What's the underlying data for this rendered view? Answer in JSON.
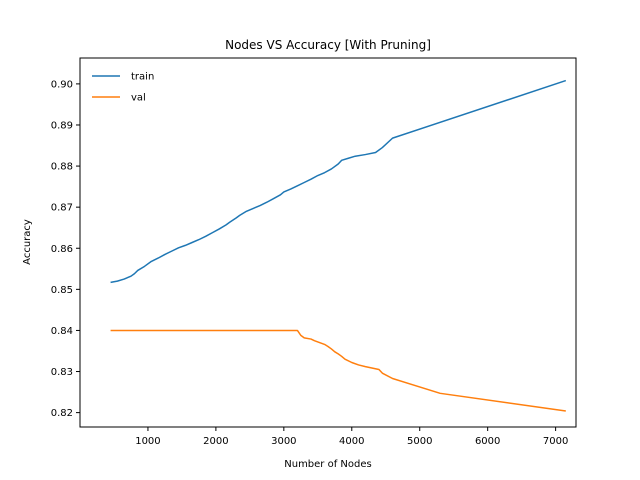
{
  "chart_data": {
    "type": "line",
    "title": "Nodes VS Accuracy [With Pruning]",
    "xlabel": "Number of Nodes",
    "ylabel": "Accuracy",
    "xlim": [
      0,
      7300
    ],
    "ylim": [
      0.8165,
      0.9063
    ],
    "xticks": [
      1000,
      2000,
      3000,
      4000,
      5000,
      6000,
      7000
    ],
    "yticks": [
      0.82,
      0.83,
      0.84,
      0.85,
      0.86,
      0.87,
      0.88,
      0.89,
      0.9
    ],
    "xtick_labels": [
      "1000",
      "2000",
      "3000",
      "4000",
      "5000",
      "6000",
      "7000"
    ],
    "ytick_labels": [
      "0.82",
      "0.83",
      "0.84",
      "0.85",
      "0.86",
      "0.87",
      "0.88",
      "0.89",
      "0.90"
    ],
    "grid": false,
    "legend_position": "top-left",
    "series": [
      {
        "name": "train",
        "color": "#1f77b4",
        "x": [
          450,
          550,
          650,
          750,
          800,
          850,
          950,
          1050,
          1150,
          1250,
          1350,
          1450,
          1550,
          1650,
          1750,
          1850,
          1950,
          2050,
          2150,
          2200,
          2300,
          2350,
          2450,
          2550,
          2650,
          2750,
          2850,
          2950,
          3000,
          3100,
          3200,
          3300,
          3400,
          3500,
          3600,
          3700,
          3800,
          3850,
          3950,
          4050,
          4200,
          4350,
          4450,
          4600,
          7150
        ],
        "y": [
          0.8517,
          0.852,
          0.8525,
          0.8532,
          0.8538,
          0.8546,
          0.8556,
          0.8568,
          0.8576,
          0.8585,
          0.8593,
          0.8601,
          0.8607,
          0.8614,
          0.8621,
          0.8629,
          0.8638,
          0.8647,
          0.8657,
          0.8663,
          0.8674,
          0.868,
          0.869,
          0.8697,
          0.8704,
          0.8712,
          0.8721,
          0.873,
          0.8737,
          0.8744,
          0.8752,
          0.876,
          0.8768,
          0.8777,
          0.8784,
          0.8793,
          0.8805,
          0.8814,
          0.8819,
          0.8824,
          0.8828,
          0.8833,
          0.8845,
          0.8868,
          0.9008
        ]
      },
      {
        "name": "val",
        "color": "#ff7f0e",
        "x": [
          450,
          1000,
          2000,
          3000,
          3200,
          3250,
          3300,
          3400,
          3450,
          3550,
          3600,
          3650,
          3700,
          3750,
          3800,
          3850,
          3900,
          4000,
          4100,
          4200,
          4400,
          4450,
          4600,
          5300,
          7150
        ],
        "y": [
          0.84,
          0.84,
          0.84,
          0.84,
          0.84,
          0.8388,
          0.8382,
          0.8379,
          0.8375,
          0.8369,
          0.8366,
          0.8361,
          0.8355,
          0.8348,
          0.8343,
          0.8337,
          0.833,
          0.8322,
          0.8316,
          0.8312,
          0.8305,
          0.8296,
          0.8283,
          0.8247,
          0.8204
        ]
      }
    ]
  }
}
